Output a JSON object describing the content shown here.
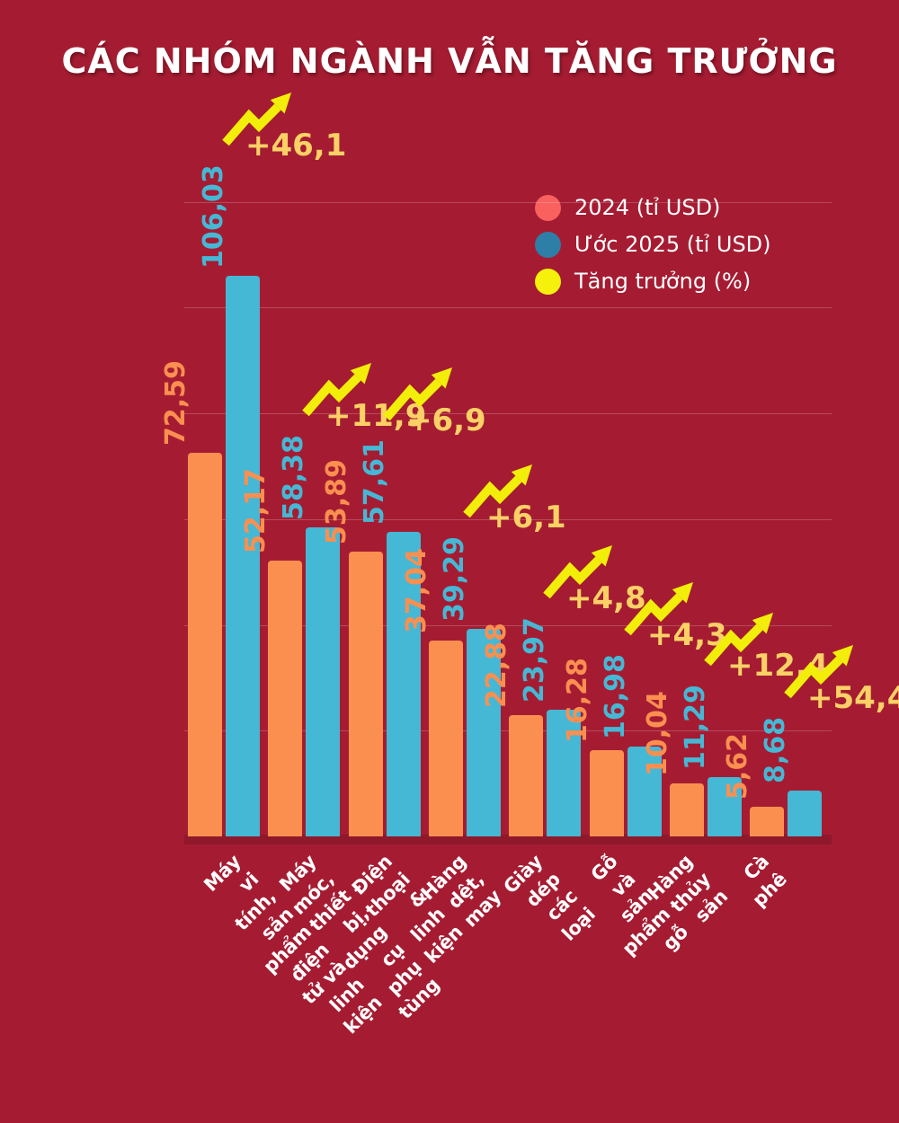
{
  "title": "CÁC NHÓM NGÀNH VẪN TĂNG TRƯỞNG",
  "legend": [
    {
      "label": "2024 (tỉ USD)",
      "color": "#f8615e",
      "swatch_icon": "circle-icon"
    },
    {
      "label": "Ước 2025 (tỉ USD)",
      "color": "#2e7fa8",
      "swatch_icon": "circle-icon"
    },
    {
      "label": "Tăng trưởng (%)",
      "color": "#f6f00d",
      "swatch_icon": "circle-icon"
    }
  ],
  "colors": {
    "background": "#a51c32",
    "bar_2024": "#fb8f50",
    "bar_2025": "#45b8d5",
    "growth_arrow": "#f2ee0a",
    "growth_text": "#fbd166",
    "category_text": "#ffffff",
    "gridline": "rgba(255,255,255,0.20)"
  },
  "chart_data": {
    "type": "bar",
    "title": "CÁC NHÓM NGÀNH VẪN TĂNG TRƯỞNG",
    "categories": [
      "Máy vi tính, sản phẩm điện\ntử và linh kiện",
      "Máy móc, thiết bị, dụng cụ\nphụ tùng",
      "Điện thoại & linh kiện",
      "Hàng dệt, may",
      "Giày dép các loại",
      "Gỗ và sản phẩm gỗ",
      "Hàng thủy sản",
      "Cà phê"
    ],
    "series": [
      {
        "name": "2024 (tỉ USD)",
        "color": "#fb8f50",
        "values": [
          72.59,
          52.17,
          53.89,
          37.04,
          22.88,
          16.28,
          10.04,
          5.62
        ],
        "labels": [
          "72,59",
          "52,17",
          "53,89",
          "37,04",
          "22,88",
          "16,28",
          "10,04",
          "5,62"
        ]
      },
      {
        "name": "Ước 2025 (tỉ USD)",
        "color": "#45b8d5",
        "values": [
          106.03,
          58.38,
          57.61,
          39.29,
          23.97,
          16.98,
          11.29,
          8.68
        ],
        "labels": [
          "106,03",
          "58,38",
          "57,61",
          "39,29",
          "23,97",
          "16,98",
          "11,29",
          "8,68"
        ]
      }
    ],
    "growth": {
      "name": "Tăng trưởng (%)",
      "values": [
        46.1,
        11.9,
        6.9,
        6.1,
        4.8,
        4.3,
        12.4,
        54.4
      ],
      "labels": [
        "+46,1",
        "+11,9",
        "+6,9",
        "+6,1",
        "+4,8",
        "+4,3",
        "+12,4",
        "+54,4"
      ],
      "arrow_icon": "zigzag-growth-arrow-icon"
    },
    "xlabel": "",
    "ylabel": "",
    "ylim": [
      0,
      120
    ],
    "gridline_step": 20,
    "grid": true,
    "legend_position": "top-right",
    "value_label_rotation": -90,
    "category_label_rotation": -45
  }
}
